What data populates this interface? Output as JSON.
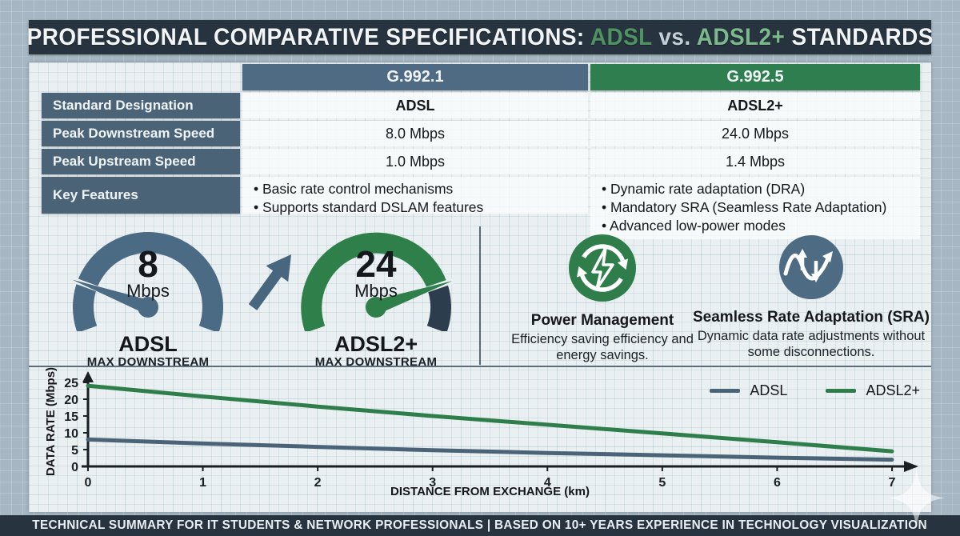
{
  "title": {
    "prefix": "PROFESSIONAL COMPARATIVE SPECIFICATIONS: ",
    "adsl": "ADSL",
    "vs": " vs. ",
    "adsl2": "ADSL2+",
    "suffix": " STANDARDS"
  },
  "table": {
    "col_headers": [
      "G.992.1",
      "G.992.5"
    ],
    "rows": [
      {
        "label": "Standard Designation",
        "c1": "ADSL",
        "c2": "ADSL2+"
      },
      {
        "label": "Peak Downstream Speed",
        "c1": "8.0 Mbps",
        "c2": "24.0 Mbps"
      },
      {
        "label": "Peak Upstream Speed",
        "c1": "1.0 Mbps",
        "c2": "1.4 Mbps"
      },
      {
        "label": "Key Features",
        "c1_items": [
          "Basic rate control mechanisms",
          "Supports standard DSLAM features"
        ],
        "c2_items": [
          "Dynamic rate adaptation (DRA)",
          "Mandatory SRA (Seamless Rate Adaptation)",
          "Advanced low-power modes"
        ]
      }
    ]
  },
  "gauges": [
    {
      "value": "8",
      "unit": "Mbps",
      "name": "ADSL",
      "sublabel": "MAX DOWNSTREAM",
      "color": "#4b6a84",
      "needle_angle": 160
    },
    {
      "value": "24",
      "unit": "Mbps",
      "name": "ADSL2+",
      "sublabel": "MAX DOWNSTREAM",
      "color": "#2e7f49",
      "remainder_color": "#2c3d4d",
      "needle_angle": 19
    }
  ],
  "features": [
    {
      "icon": "power-recycle-bolt-icon",
      "color": "#2e7d4a",
      "title": "Power Management",
      "desc": "Efficiency saving efficiency and energy savings."
    },
    {
      "icon": "wave-rate-arrows-icon",
      "color": "#4d6b82",
      "title": "Seamless Rate Adaptation (SRA)",
      "desc": "Dynamic data rate adjustments without some disconnections."
    }
  ],
  "chart_data": {
    "type": "line",
    "title": "",
    "xlabel": "DISTANCE FROM EXCHANGE (km)",
    "ylabel": "DATA RATE (Mbps)",
    "x": [
      0,
      1,
      2,
      3,
      4,
      5,
      6,
      7
    ],
    "xticks": [
      0,
      1,
      2,
      3,
      4,
      5,
      6,
      7
    ],
    "yticks": [
      0,
      5,
      10,
      15,
      20,
      25
    ],
    "ylim": [
      0,
      25
    ],
    "xlim": [
      0,
      7
    ],
    "grid": false,
    "legend_position": "top-right",
    "series": [
      {
        "name": "ADSL",
        "color": "#4a6377",
        "values": [
          8.0,
          6.8,
          5.8,
          4.8,
          4.0,
          3.3,
          2.6,
          2.0
        ]
      },
      {
        "name": "ADSL2+",
        "color": "#2e7d4b",
        "values": [
          24.0,
          20.8,
          17.8,
          15.0,
          12.4,
          9.8,
          7.2,
          4.5
        ]
      }
    ]
  },
  "footer": {
    "text": "TECHNICAL SUMMARY FOR IT STUDENTS & NETWORK PROFESSIONALS | BASED ON 10+ YEARS EXPERIENCE IN TECHNOLOGY VISUALIZATION"
  },
  "colors": {
    "title_bar": "#27333e",
    "panel": "#eaeff2",
    "table_label": "#4a6376",
    "header_g9921": "#4e6b83",
    "header_g9925": "#2e7e4f",
    "accent_green": "#2e7d4b",
    "accent_slate": "#4b6a84",
    "footer_bar": "#27333e"
  }
}
